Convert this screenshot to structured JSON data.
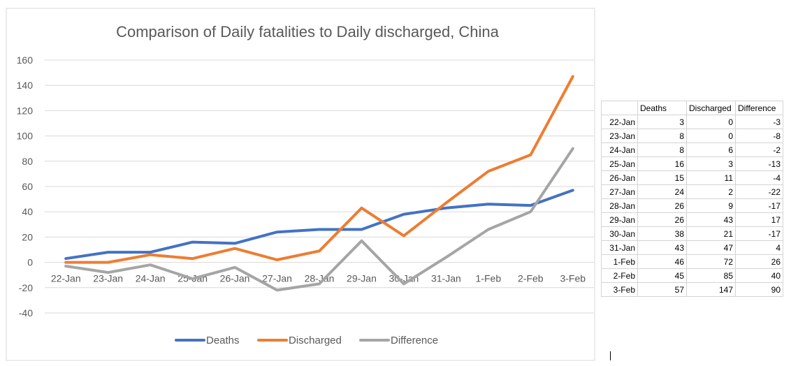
{
  "chart_data": {
    "type": "line",
    "title": "Comparison of Daily fatalities to Daily discharged, China",
    "categories": [
      "22-Jan",
      "23-Jan",
      "24-Jan",
      "25-Jan",
      "26-Jan",
      "27-Jan",
      "28-Jan",
      "29-Jan",
      "30-Jan",
      "31-Jan",
      "1-Feb",
      "2-Feb",
      "3-Feb"
    ],
    "series": [
      {
        "name": "Deaths",
        "color": "#4472c4",
        "values": [
          3,
          8,
          8,
          16,
          15,
          24,
          26,
          26,
          38,
          43,
          46,
          45,
          57
        ]
      },
      {
        "name": "Discharged",
        "color": "#ed7d31",
        "values": [
          0,
          0,
          6,
          3,
          11,
          2,
          9,
          43,
          21,
          47,
          72,
          85,
          147
        ]
      },
      {
        "name": "Difference",
        "color": "#a5a5a5",
        "values": [
          -3,
          -8,
          -2,
          -13,
          -4,
          -22,
          -17,
          17,
          -17,
          4,
          26,
          40,
          90
        ]
      }
    ],
    "yticks": [
      -40,
      -20,
      0,
      20,
      40,
      60,
      80,
      100,
      120,
      140,
      160
    ],
    "ylim": [
      -40,
      160
    ],
    "xlabel": "",
    "ylabel": "",
    "grid": true,
    "legend": "bottom"
  },
  "table": {
    "headers": [
      "",
      "Deaths",
      "Discharged",
      "Difference"
    ],
    "rows": [
      [
        "22-Jan",
        "3",
        "0",
        "-3"
      ],
      [
        "23-Jan",
        "8",
        "0",
        "-8"
      ],
      [
        "24-Jan",
        "8",
        "6",
        "-2"
      ],
      [
        "25-Jan",
        "16",
        "3",
        "-13"
      ],
      [
        "26-Jan",
        "15",
        "11",
        "-4"
      ],
      [
        "27-Jan",
        "24",
        "2",
        "-22"
      ],
      [
        "28-Jan",
        "26",
        "9",
        "-17"
      ],
      [
        "29-Jan",
        "26",
        "43",
        "17"
      ],
      [
        "30-Jan",
        "38",
        "21",
        "-17"
      ],
      [
        "31-Jan",
        "43",
        "47",
        "4"
      ],
      [
        "1-Feb",
        "46",
        "72",
        "26"
      ],
      [
        "2-Feb",
        "45",
        "85",
        "40"
      ],
      [
        "3-Feb",
        "57",
        "147",
        "90"
      ]
    ]
  }
}
